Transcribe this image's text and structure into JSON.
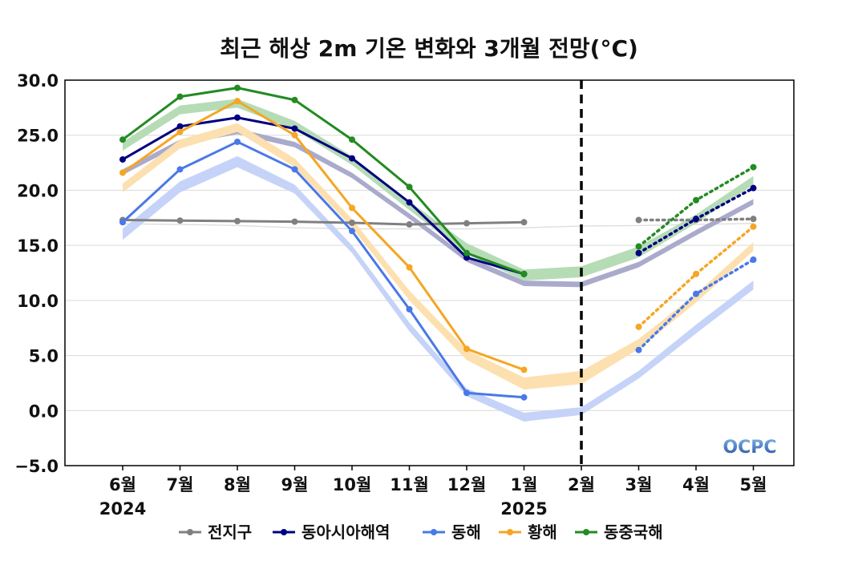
{
  "chart_data": {
    "type": "line",
    "title": "최근 해상 2m 기온 변화와 3개월 전망(°C)",
    "categories": [
      "6월",
      "7월",
      "8월",
      "9월",
      "10월",
      "11월",
      "12월",
      "1월",
      "2월",
      "3월",
      "4월",
      "5월"
    ],
    "year_labels": [
      {
        "category": "6월",
        "label": "2024"
      },
      {
        "category": "1월",
        "label": "2025"
      }
    ],
    "ylim": [
      -5.0,
      30.0
    ],
    "yticks": [
      "30.0",
      "25.0",
      "20.0",
      "15.0",
      "10.0",
      "5.0",
      "0.0",
      "-5.0"
    ],
    "grid": true,
    "forecast_divider": "2월",
    "legend_position": "bottom",
    "series": [
      {
        "name": "전지구",
        "color": "#808080",
        "observed": [
          17.3,
          17.25,
          17.2,
          17.15,
          17.05,
          16.9,
          17.0,
          17.1,
          null,
          null,
          null,
          null
        ],
        "forecast": [
          null,
          null,
          null,
          null,
          null,
          null,
          null,
          null,
          null,
          17.3,
          17.3,
          17.4
        ],
        "climatology_color": "#dddddd",
        "climatology": [
          [
            16.9,
            17.0
          ],
          [
            16.85,
            16.95
          ],
          [
            16.75,
            16.85
          ],
          [
            16.55,
            16.65
          ],
          [
            16.45,
            16.55
          ],
          [
            16.45,
            16.55
          ],
          [
            16.45,
            16.55
          ],
          [
            16.55,
            16.65
          ],
          [
            16.7,
            16.8
          ],
          [
            16.75,
            16.85
          ],
          [
            16.85,
            16.95
          ],
          [
            16.95,
            17.05
          ]
        ]
      },
      {
        "name": "동아시아해역",
        "color": "#000080",
        "observed": [
          22.8,
          25.8,
          26.6,
          25.6,
          22.9,
          18.9,
          13.9,
          12.4,
          null,
          null,
          null,
          null
        ],
        "forecast": [
          null,
          null,
          null,
          null,
          null,
          null,
          null,
          null,
          null,
          14.3,
          17.4,
          20.2
        ],
        "climatology_color": "#aaaacc",
        "climatology": [
          [
            21.4,
            21.9
          ],
          [
            24.1,
            24.6
          ],
          [
            25.1,
            25.6
          ],
          [
            23.9,
            24.4
          ],
          [
            21.1,
            21.6
          ],
          [
            17.4,
            17.9
          ],
          [
            13.5,
            14.0
          ],
          [
            11.3,
            11.8
          ],
          [
            11.2,
            11.7
          ],
          [
            13.0,
            13.5
          ],
          [
            15.9,
            16.4
          ],
          [
            18.7,
            19.2
          ]
        ]
      },
      {
        "name": "동해",
        "color": "#4a78e8",
        "observed": [
          17.1,
          21.9,
          24.4,
          21.9,
          16.3,
          9.2,
          1.6,
          1.2,
          null,
          null,
          null,
          null
        ],
        "forecast": [
          null,
          null,
          null,
          null,
          null,
          null,
          null,
          null,
          null,
          5.5,
          10.6,
          13.7
        ],
        "climatology_color": "#c5d3f8",
        "climatology": [
          [
            15.5,
            16.5
          ],
          [
            19.8,
            20.8
          ],
          [
            22.1,
            23.1
          ],
          [
            19.7,
            20.5
          ],
          [
            14.3,
            15.0
          ],
          [
            7.2,
            8.0
          ],
          [
            1.3,
            2.0
          ],
          [
            -1.0,
            -0.2
          ],
          [
            -0.4,
            0.3
          ],
          [
            2.9,
            3.6
          ],
          [
            7.0,
            7.8
          ],
          [
            11.0,
            11.8
          ]
        ]
      },
      {
        "name": "황해",
        "color": "#f5a623",
        "observed": [
          21.6,
          25.3,
          28.1,
          25.0,
          18.4,
          13.0,
          5.6,
          3.7,
          null,
          null,
          null,
          null
        ],
        "forecast": [
          null,
          null,
          null,
          null,
          null,
          null,
          null,
          null,
          null,
          7.6,
          12.4,
          16.7
        ],
        "climatology_color": "#fde0b0",
        "climatology": [
          [
            19.8,
            20.6
          ],
          [
            23.8,
            24.6
          ],
          [
            25.3,
            26.1
          ],
          [
            22.1,
            22.9
          ],
          [
            16.6,
            17.4
          ],
          [
            10.0,
            10.9
          ],
          [
            4.6,
            5.5
          ],
          [
            1.9,
            3.0
          ],
          [
            2.4,
            3.6
          ],
          [
            5.6,
            6.5
          ],
          [
            9.8,
            10.6
          ],
          [
            14.5,
            15.3
          ]
        ]
      },
      {
        "name": "동중국해",
        "color": "#228b22",
        "observed": [
          24.6,
          28.5,
          29.3,
          28.2,
          24.6,
          20.3,
          14.3,
          12.4,
          null,
          null,
          null,
          null
        ],
        "forecast": [
          null,
          null,
          null,
          null,
          null,
          null,
          null,
          null,
          null,
          14.9,
          19.1,
          22.1
        ],
        "climatology_color": "#b6dcb6",
        "climatology": [
          [
            23.6,
            24.4
          ],
          [
            26.9,
            27.7
          ],
          [
            27.5,
            28.3
          ],
          [
            25.5,
            26.3
          ],
          [
            22.3,
            23.1
          ],
          [
            18.2,
            19.0
          ],
          [
            14.2,
            15.2
          ],
          [
            11.8,
            12.8
          ],
          [
            12.1,
            13.1
          ],
          [
            13.9,
            14.9
          ],
          [
            17.0,
            17.8
          ],
          [
            20.5,
            21.3
          ]
        ]
      }
    ]
  },
  "logo": {
    "text": "OCPC",
    "color_top": "#7fb2e6",
    "color_bottom": "#1f4fa0"
  }
}
